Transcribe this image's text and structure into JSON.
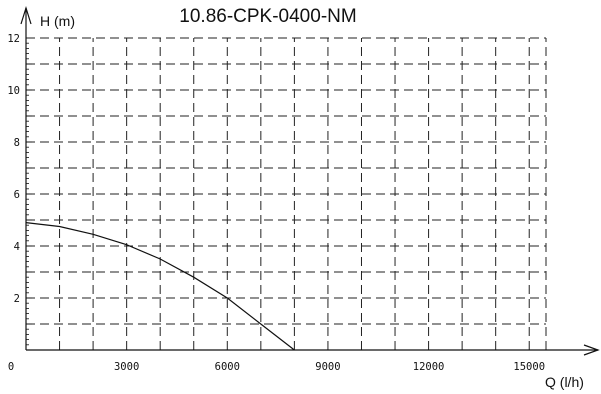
{
  "chart_data": {
    "type": "line",
    "title": "10.86-CPK-0400-NM",
    "xlabel": "Q (l/h)",
    "ylabel": "H (m)",
    "xlim": [
      0,
      15500
    ],
    "ylim": [
      0,
      12
    ],
    "x_ticks": [
      0,
      3000,
      6000,
      9000,
      12000,
      15000
    ],
    "y_ticks": [
      2,
      4,
      6,
      8,
      10,
      12
    ],
    "grid": true,
    "series": [
      {
        "x": [
          0,
          1000,
          2000,
          3000,
          4000,
          5000,
          6000,
          7000,
          8000
        ],
        "y": [
          4.9,
          4.75,
          4.45,
          4.05,
          3.5,
          2.8,
          2.0,
          1.0,
          0.0
        ]
      }
    ]
  }
}
